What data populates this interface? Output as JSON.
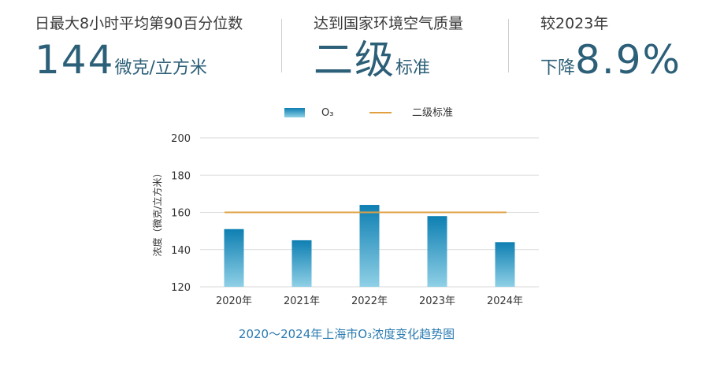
{
  "stats": [
    {
      "label": "日最大8小时平均第90百分位数",
      "value_big": "144",
      "value_small": "微克/立方米",
      "small_position": "after"
    },
    {
      "label": "达到国家环境空气质量",
      "value_big": "二级",
      "value_small": "标准",
      "small_position": "after"
    },
    {
      "label": "较2023年",
      "value_big": "8.9%",
      "value_small": "下降",
      "small_position": "before"
    }
  ],
  "colors": {
    "bar_top": "#0e7fb2",
    "bar_bottom": "#8fd0e6",
    "standard_line": "#e0a040",
    "grid": "#d9d9d9",
    "title": "#2b7bb1",
    "stat_value": "#2c5f78"
  },
  "chart_data": {
    "type": "bar",
    "title": "2020～2024年上海市O₃浓度变化趋势图",
    "ylabel": "浓度（微克/立方米）",
    "xlabel": "",
    "categories": [
      "2020年",
      "2021年",
      "2022年",
      "2023年",
      "2024年"
    ],
    "series": [
      {
        "name": "O₃",
        "values": [
          151,
          145,
          164,
          158,
          144
        ]
      }
    ],
    "reference_lines": [
      {
        "name": "二级标准",
        "value": 160
      }
    ],
    "ylim": [
      120,
      200
    ],
    "yticks": [
      120,
      140,
      160,
      180,
      200
    ],
    "grid": true,
    "legend": "top-center"
  }
}
